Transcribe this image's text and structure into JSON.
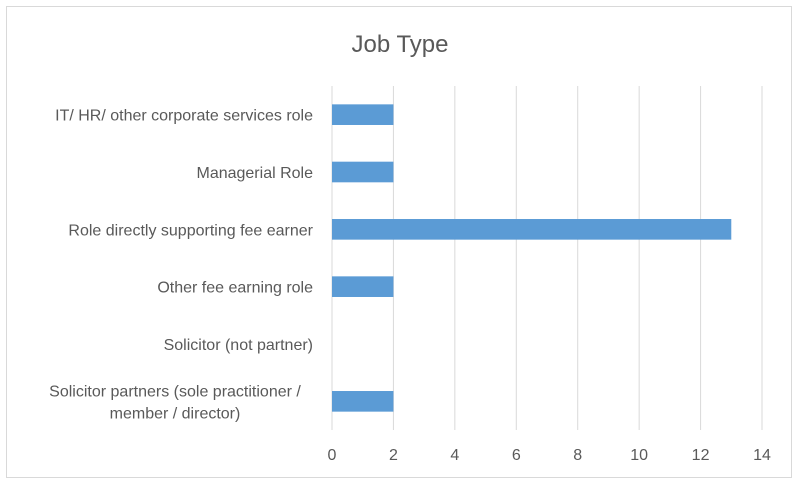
{
  "chart_data": {
    "type": "bar",
    "orientation": "horizontal",
    "title": "Job Type",
    "categories": [
      "IT/ HR/ other corporate services role",
      "Managerial Role",
      "Role directly supporting fee earner",
      "Other fee earning role",
      "Solicitor (not partner)",
      "Solicitor partners (sole practitioner / member / director)"
    ],
    "category_lines": [
      [
        "IT/ HR/ other corporate services role"
      ],
      [
        "Managerial Role"
      ],
      [
        "Role directly supporting fee earner"
      ],
      [
        "Other fee earning role"
      ],
      [
        "Solicitor (not partner)"
      ],
      [
        "Solicitor partners (sole practitioner /",
        "member / director)"
      ]
    ],
    "values": [
      2,
      2,
      13,
      2,
      0,
      2
    ],
    "xlim": [
      0,
      14
    ],
    "xticks": [
      0,
      2,
      4,
      6,
      8,
      10,
      12,
      14
    ],
    "xlabel": "",
    "ylabel": "",
    "grid": "vertical",
    "legend": "none",
    "bar_color": "#5b9bd5"
  }
}
